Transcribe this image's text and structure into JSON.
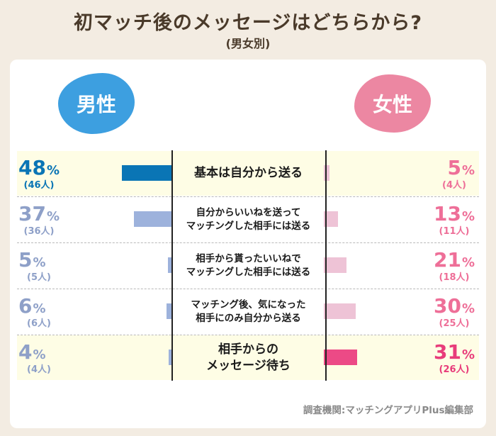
{
  "title": "初マッチ後のメッセージはどちらから?",
  "subtitle": "(男女別)",
  "legend": {
    "male": "男性",
    "female": "女性"
  },
  "footer": "調査機関:マッチングアプリPlus編集部",
  "colors": {
    "male_primary": "#0a75b5",
    "male_secondary": "#9db2dc",
    "female_primary": "#ec4a86",
    "female_secondary": "#eec3d6",
    "male_text_primary": "#0a75b5",
    "male_text_secondary": "#8ea0c8",
    "female_text": "#ee6f98",
    "female_text_primary": "#e83c7a"
  },
  "chart_data": {
    "type": "bar",
    "title": "初マッチ後のメッセージはどちらから?",
    "subtitle": "(男女別)",
    "unit": "%",
    "categories": [
      "基本は自分から送る",
      "自分からいいねを送って\nマッチングした相手には送る",
      "相手から貰ったいいねで\nマッチングした相手には送る",
      "マッチング後、気になった\n相手にのみ自分から送る",
      "相手からの\nメッセージ待ち"
    ],
    "series": [
      {
        "name": "男性",
        "values": [
          48,
          37,
          5,
          6,
          4
        ],
        "counts": [
          "(46人)",
          "(36人)",
          "(5人)",
          "(6人)",
          "(4人)"
        ]
      },
      {
        "name": "女性",
        "values": [
          5,
          13,
          21,
          30,
          31
        ],
        "counts": [
          "(4人)",
          "(11人)",
          "(18人)",
          "(25人)",
          "(26人)"
        ]
      }
    ],
    "highlight": {
      "男性": 0,
      "女性": 4
    },
    "xlim": [
      0,
      100
    ]
  }
}
